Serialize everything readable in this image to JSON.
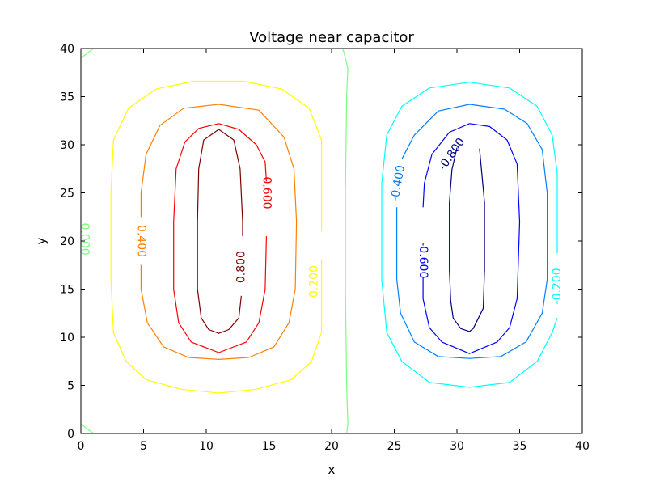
{
  "chart_data": {
    "type": "contour",
    "title": "Voltage near capacitor",
    "xlabel": "x",
    "ylabel": "y",
    "xlim": [
      0,
      40
    ],
    "ylim": [
      0,
      40
    ],
    "xticks": [
      "0",
      "5",
      "10",
      "15",
      "20",
      "25",
      "30",
      "35",
      "40"
    ],
    "yticks": [
      "0",
      "5",
      "10",
      "15",
      "20",
      "25",
      "30",
      "35",
      "40"
    ],
    "grid": false,
    "levels": [
      {
        "value": -0.8,
        "label": "-0.800",
        "color": "#00007f",
        "curves": [
          {
            "closed": true,
            "points": [
              [
                31.8,
                29.6
              ],
              [
                32.2,
                24
              ],
              [
                32.2,
                17
              ],
              [
                32.1,
                13
              ],
              [
                31.3,
                10.9
              ],
              [
                31,
                10.6
              ],
              [
                30.3,
                10.9
              ],
              [
                29.7,
                12
              ],
              [
                29.5,
                13.8
              ],
              [
                29.4,
                17
              ],
              [
                29.4,
                24
              ],
              [
                29.6,
                27.4
              ],
              [
                30.0,
                29.7
              ]
            ]
          }
        ],
        "label_at": [
          29.6,
          29.0
        ],
        "label_angle": -55
      },
      {
        "value": -0.6,
        "label": "-0.600",
        "color": "#0000ff",
        "curves": [
          {
            "closed": true,
            "points": [
              [
                31,
                32.2
              ],
              [
                32.6,
                31.9
              ],
              [
                34,
                30.5
              ],
              [
                34.8,
                28
              ],
              [
                35,
                22
              ],
              [
                34.8,
                14
              ],
              [
                34.2,
                11
              ],
              [
                33.2,
                9.5
              ],
              [
                31,
                8.3
              ],
              [
                28.8,
                9.5
              ],
              [
                27.8,
                11
              ],
              [
                27.3,
                14
              ],
              [
                27.3,
                16.2
              ]
            ]
          },
          {
            "closed": false,
            "points": [
              [
                27.3,
                23.5
              ],
              [
                27.4,
                26
              ],
              [
                28,
                29
              ],
              [
                29.4,
                31.3
              ],
              [
                31,
                32.2
              ]
            ]
          }
        ],
        "label_at": [
          27.3,
          18.0
        ],
        "label_angle": 90
      },
      {
        "value": -0.4,
        "label": "-0.400",
        "color": "#0080ff",
        "curves": [
          {
            "closed": true,
            "points": [
              [
                31,
                34.2
              ],
              [
                33.8,
                33.7
              ],
              [
                35.6,
                32.2
              ],
              [
                36.8,
                29.5
              ],
              [
                37.2,
                25
              ],
              [
                37.2,
                16
              ],
              [
                36.8,
                12.5
              ],
              [
                35.5,
                9.5
              ],
              [
                33.5,
                8
              ],
              [
                31,
                7.8
              ],
              [
                28.5,
                8
              ],
              [
                26.6,
                9.5
              ],
              [
                25.5,
                12.5
              ],
              [
                25.2,
                16
              ],
              [
                25.2,
                23.5
              ]
            ]
          },
          {
            "closed": false,
            "points": [
              [
                25.6,
                28.5
              ],
              [
                26.6,
                31
              ],
              [
                28.5,
                33.5
              ],
              [
                31,
                34.2
              ]
            ]
          }
        ],
        "label_at": [
          25.3,
          26.0
        ],
        "label_angle": -80
      },
      {
        "value": -0.2,
        "label": "-0.200",
        "color": "#00ffff",
        "curves": [
          {
            "closed": true,
            "points": [
              [
                38,
                18.7
              ],
              [
                38,
                27
              ],
              [
                37.6,
                31
              ],
              [
                36.4,
                34
              ],
              [
                34.2,
                35.9
              ],
              [
                31,
                36.5
              ],
              [
                27.8,
                35.9
              ],
              [
                25.6,
                34
              ],
              [
                24.4,
                31
              ],
              [
                24,
                26
              ],
              [
                24,
                16
              ],
              [
                24.4,
                10.5
              ],
              [
                25.6,
                7.5
              ],
              [
                27.8,
                5.3
              ],
              [
                31,
                4.8
              ],
              [
                34.2,
                5.3
              ],
              [
                36.4,
                7.5
              ],
              [
                37.6,
                10.5
              ],
              [
                38,
                12
              ]
            ]
          }
        ],
        "label_at": [
          38.0,
          15.3
        ],
        "label_angle": -90
      },
      {
        "value": 0.0,
        "label": "0.000",
        "color": "#7fff7f",
        "curves": [
          {
            "closed": false,
            "points": [
              [
                21.2,
                0
              ],
              [
                21.3,
                1
              ],
              [
                21.2,
                5
              ],
              [
                21.1,
                15
              ],
              [
                21.1,
                25
              ],
              [
                21.2,
                35
              ],
              [
                21.3,
                38
              ],
              [
                20.9,
                40
              ]
            ]
          },
          {
            "closed": false,
            "points": [
              [
                0,
                39
              ],
              [
                1,
                40
              ]
            ]
          },
          {
            "closed": false,
            "points": [
              [
                0,
                1
              ],
              [
                1,
                0
              ]
            ]
          }
        ],
        "label_at": [
          0.3,
          20.2
        ],
        "label_angle": 90
      },
      {
        "value": 0.2,
        "label": "0.200",
        "color": "#ffff00",
        "curves": [
          {
            "closed": true,
            "points": [
              [
                19.2,
                18
              ],
              [
                19.2,
                10.5
              ],
              [
                18.4,
                7.5
              ],
              [
                16.8,
                5.6
              ],
              [
                14,
                4.6
              ],
              [
                11,
                4.2
              ],
              [
                8,
                4.6
              ],
              [
                5.2,
                5.6
              ],
              [
                3.6,
                7.5
              ],
              [
                2.6,
                10.5
              ],
              [
                2.4,
                16
              ],
              [
                2.4,
                25
              ],
              [
                2.6,
                30.5
              ],
              [
                3.8,
                33.8
              ],
              [
                6,
                35.8
              ],
              [
                9,
                36.6
              ],
              [
                11,
                36.6
              ],
              [
                13,
                36.6
              ],
              [
                16,
                35.8
              ],
              [
                18.2,
                33.8
              ],
              [
                19.2,
                30.5
              ],
              [
                19.2,
                21
              ]
            ]
          }
        ],
        "label_at": [
          18.6,
          15.8
        ],
        "label_angle": -90
      },
      {
        "value": 0.4,
        "label": "0.400",
        "color": "#ff7f00",
        "curves": [
          {
            "closed": true,
            "points": [
              [
                11,
                34.2
              ],
              [
                8.2,
                33.8
              ],
              [
                6.3,
                32
              ],
              [
                5.2,
                29
              ],
              [
                4.8,
                25
              ],
              [
                4.8,
                22.5
              ]
            ]
          },
          {
            "closed": false,
            "points": [
              [
                4.8,
                17.5
              ],
              [
                4.8,
                15
              ],
              [
                5.3,
                11.5
              ],
              [
                6.6,
                9
              ],
              [
                8.6,
                7.9
              ],
              [
                11,
                7.7
              ],
              [
                13.4,
                7.9
              ],
              [
                15.4,
                9
              ],
              [
                16.6,
                11.5
              ],
              [
                17.1,
                15
              ],
              [
                17.2,
                22
              ],
              [
                17,
                27.5
              ],
              [
                16.2,
                30.8
              ],
              [
                14.2,
                33.6
              ],
              [
                11,
                34.2
              ]
            ]
          }
        ],
        "label_at": [
          4.8,
          20.0
        ],
        "label_angle": 90
      },
      {
        "value": 0.6,
        "label": "0.600",
        "color": "#ff0000",
        "curves": [
          {
            "closed": true,
            "points": [
              [
                14.8,
                26.2
              ],
              [
                14.7,
                28.2
              ],
              [
                14,
                30
              ],
              [
                12.6,
                31.6
              ],
              [
                11,
                32.2
              ],
              [
                9.4,
                31.7
              ],
              [
                8.3,
                30.3
              ],
              [
                7.6,
                27.5
              ],
              [
                7.4,
                22
              ],
              [
                7.4,
                15
              ],
              [
                7.8,
                11.5
              ],
              [
                8.8,
                9.5
              ],
              [
                11,
                8.4
              ],
              [
                13.2,
                9.5
              ],
              [
                14.2,
                11.5
              ],
              [
                14.7,
                15
              ],
              [
                14.8,
                20.5
              ]
            ]
          }
        ],
        "label_at": [
          14.8,
          25.0
        ],
        "label_angle": 90
      },
      {
        "value": 0.8,
        "label": "0.800",
        "color": "#7f0000",
        "curves": [
          {
            "closed": true,
            "points": [
              [
                12.8,
                14.3
              ],
              [
                12.6,
                12
              ],
              [
                11.8,
                10.8
              ],
              [
                11,
                10.4
              ],
              [
                10.2,
                10.8
              ],
              [
                9.6,
                12
              ],
              [
                9.3,
                15
              ],
              [
                9.3,
                22
              ],
              [
                9.4,
                27.5
              ],
              [
                9.8,
                30.5
              ],
              [
                11,
                31.6
              ],
              [
                12.2,
                30.5
              ],
              [
                12.7,
                27.5
              ],
              [
                12.9,
                22
              ],
              [
                12.9,
                20.5
              ]
            ]
          }
        ],
        "label_at": [
          12.8,
          17.3
        ],
        "label_angle": -90
      }
    ]
  }
}
